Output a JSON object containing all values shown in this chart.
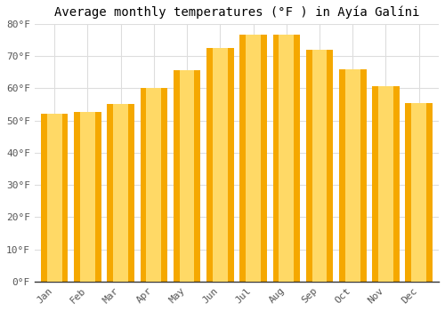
{
  "title": "Average monthly temperatures (°F ) in Ayía Galíni",
  "months": [
    "Jan",
    "Feb",
    "Mar",
    "Apr",
    "May",
    "Jun",
    "Jul",
    "Aug",
    "Sep",
    "Oct",
    "Nov",
    "Dec"
  ],
  "values": [
    52,
    52.5,
    55,
    60,
    65.5,
    72.5,
    76.5,
    76.5,
    72,
    66,
    60.5,
    55.5
  ],
  "bar_color_center": "#FFD966",
  "bar_color_edge": "#F5A800",
  "ylim": [
    0,
    80
  ],
  "yticks": [
    0,
    10,
    20,
    30,
    40,
    50,
    60,
    70,
    80
  ],
  "ytick_labels": [
    "0°F",
    "10°F",
    "20°F",
    "30°F",
    "40°F",
    "50°F",
    "60°F",
    "70°F",
    "80°F"
  ],
  "background_color": "#ffffff",
  "grid_color": "#dddddd",
  "title_fontsize": 10,
  "tick_fontsize": 8,
  "font_family": "monospace",
  "bar_width": 0.82
}
